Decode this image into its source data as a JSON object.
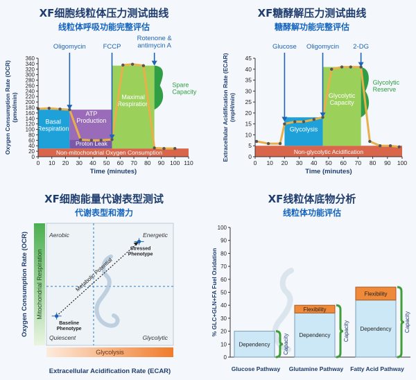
{
  "colors": {
    "title": "#1f3d6e",
    "subtitle": "#1565c0",
    "basal": "#1ea1d8",
    "atp": "#9a6bb8",
    "proton": "#7b59a8",
    "maximal": "#9bd15a",
    "spare": "#2f9e44",
    "floor": "#d9654b",
    "trace": "#e8b04a",
    "arrow": "#1e63b4",
    "green_bar": "#6dbb4a",
    "orange": "#ef8a3a",
    "blue_bar": "#cce8f6"
  },
  "chart_data": [
    {
      "type": "line",
      "title": "XF细胞线粒体压力测试曲线",
      "subtitle": "线粒体呼吸功能完整评估",
      "xlabel": "Time (minutes)",
      "ylabel": "Oxygen Consumption Rate (OCR) (pmol/min)",
      "xlim": [
        0,
        110
      ],
      "ylim": [
        0,
        360
      ],
      "xticks": [
        0,
        10,
        20,
        30,
        40,
        50,
        60,
        70,
        80,
        90,
        100,
        110
      ],
      "yticks": [
        0,
        20,
        40,
        60,
        80,
        100,
        120,
        140,
        160,
        180,
        200,
        220,
        240,
        260,
        280,
        300,
        320,
        340,
        360
      ],
      "x": [
        0,
        8,
        16,
        23,
        31,
        39,
        46,
        54,
        62,
        69,
        77,
        85,
        92,
        100
      ],
      "y": [
        175,
        177,
        174,
        172,
        62,
        60,
        60,
        63,
        335,
        338,
        333,
        32,
        30,
        30
      ],
      "injections": [
        {
          "label": "Oligomycin",
          "x": 23
        },
        {
          "label": "FCCP",
          "x": 54
        },
        {
          "label": "Rotenone &\nantimycin A",
          "x": 85
        }
      ],
      "annotations": {
        "basal": "Basal\nRespiration",
        "atp": "ATP\nProduction",
        "proton": "Proton Leak",
        "maximal": "Maximal\nRespiration",
        "spare": "Spare\nCapacity",
        "floor": "Non-mitochondrial Oxygen Consumption"
      }
    },
    {
      "type": "line",
      "title": "XF糖酵解压力测试曲线",
      "subtitle": "糖酵解功能完整评估",
      "xlabel": "Time (minutes)",
      "ylabel": "Extracellular Acidification Rate (ECAR) (mpH/min)",
      "xlim": [
        0,
        100
      ],
      "ylim": [
        0,
        45
      ],
      "xticks": [
        0,
        10,
        20,
        30,
        40,
        50,
        60,
        70,
        80,
        90,
        100
      ],
      "yticks": [
        0,
        5,
        10,
        15,
        20,
        25,
        30,
        35,
        40,
        45
      ],
      "x": [
        1,
        9,
        17,
        20,
        27,
        33,
        40,
        46,
        52,
        59,
        65,
        72,
        78,
        85,
        92,
        98
      ],
      "y": [
        7,
        6,
        6,
        15,
        16,
        16,
        17,
        18,
        40,
        41,
        41,
        41,
        7,
        5,
        5,
        4.5
      ],
      "injections": [
        {
          "label": "Glucose",
          "x": 20
        },
        {
          "label": "Oligomycin",
          "x": 46
        },
        {
          "label": "2-DG",
          "x": 72
        }
      ],
      "annotations": {
        "glycolysis": "Glycolysis",
        "capacity": "Glycolytic\nCapacity",
        "reserve": "Glycolytic\nReserve",
        "floor": "Non-glycolytic Acidification"
      }
    },
    {
      "type": "scatter",
      "title": "XF细胞能量代谢表型测试",
      "subtitle": "代谢表型和潜力",
      "xlabel": "Extracellular Acidification Rate (ECAR)",
      "ylabel": "Oxygen Consumption Rate (OCR)",
      "bars": {
        "vertical": "Mitochondrial Respiration",
        "horizontal": "Glycolysis"
      },
      "quadrants": [
        "Aerobic",
        "Energetic",
        "Quiescent",
        "Glycolytic"
      ],
      "points": [
        {
          "label": "Baseline\nPhenotype",
          "x": 0.08,
          "y": 0.24
        },
        {
          "label": "Stressed\nPhenotype",
          "x": 0.73,
          "y": 0.85
        }
      ],
      "arrow_label": "Metabolic Potential"
    },
    {
      "type": "bar",
      "title": "XF线粒体底物分析",
      "subtitle": "线粒体功能评估",
      "ylabel": "% GLC+GLN+FA Fuel Oxidation",
      "ylim": [
        0,
        100
      ],
      "yticks": [
        0,
        10,
        20,
        30,
        40,
        50,
        60,
        70,
        80,
        90,
        100
      ],
      "categories": [
        "Glucose Pathway",
        "Glutamine Pathway",
        "Fatty Acid Pathway"
      ],
      "series": [
        {
          "name": "Dependency",
          "values": [
            20,
            34,
            44
          ]
        },
        {
          "name": "Flexibility",
          "values": [
            0,
            6,
            10
          ]
        }
      ],
      "bracket_label": "Capacity"
    }
  ]
}
